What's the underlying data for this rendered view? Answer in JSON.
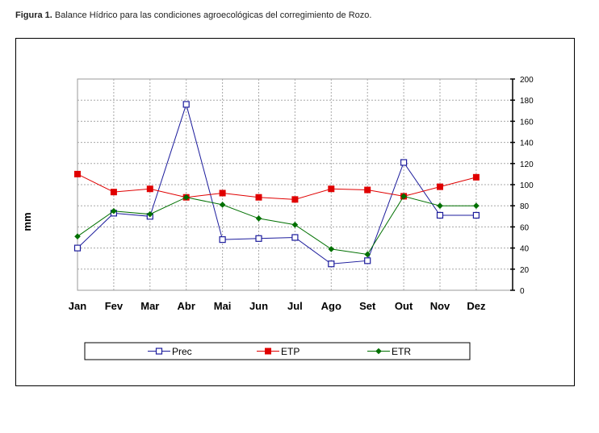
{
  "caption": {
    "bold": "Figura 1.",
    "text": " Balance Hídrico para las condiciones agroecológicas del corregimiento de Rozo."
  },
  "chart_data": {
    "type": "line",
    "categories": [
      "Jan",
      "Fev",
      "Mar",
      "Abr",
      "Mai",
      "Jun",
      "Jul",
      "Ago",
      "Set",
      "Out",
      "Nov",
      "Dez"
    ],
    "ylabel": "mm",
    "ylim": [
      0,
      200
    ],
    "yticks": [
      0,
      20,
      40,
      60,
      80,
      100,
      120,
      140,
      160,
      180,
      200
    ],
    "y_axis_side": "right",
    "grid": true,
    "legend_position": "bottom",
    "series": [
      {
        "name": "Prec",
        "color": "#1c1c9c",
        "marker": "open-square",
        "values": [
          40,
          73,
          70,
          176,
          48,
          49,
          50,
          25,
          28,
          121,
          71,
          71
        ]
      },
      {
        "name": "ETP",
        "color": "#e00000",
        "marker": "filled-square",
        "values": [
          110,
          93,
          96,
          88,
          92,
          88,
          86,
          96,
          95,
          89,
          98,
          107
        ]
      },
      {
        "name": "ETR",
        "color": "#007000",
        "marker": "diamond",
        "values": [
          51,
          75,
          72,
          88,
          81,
          68,
          62,
          39,
          34,
          89,
          80,
          80
        ]
      }
    ]
  }
}
